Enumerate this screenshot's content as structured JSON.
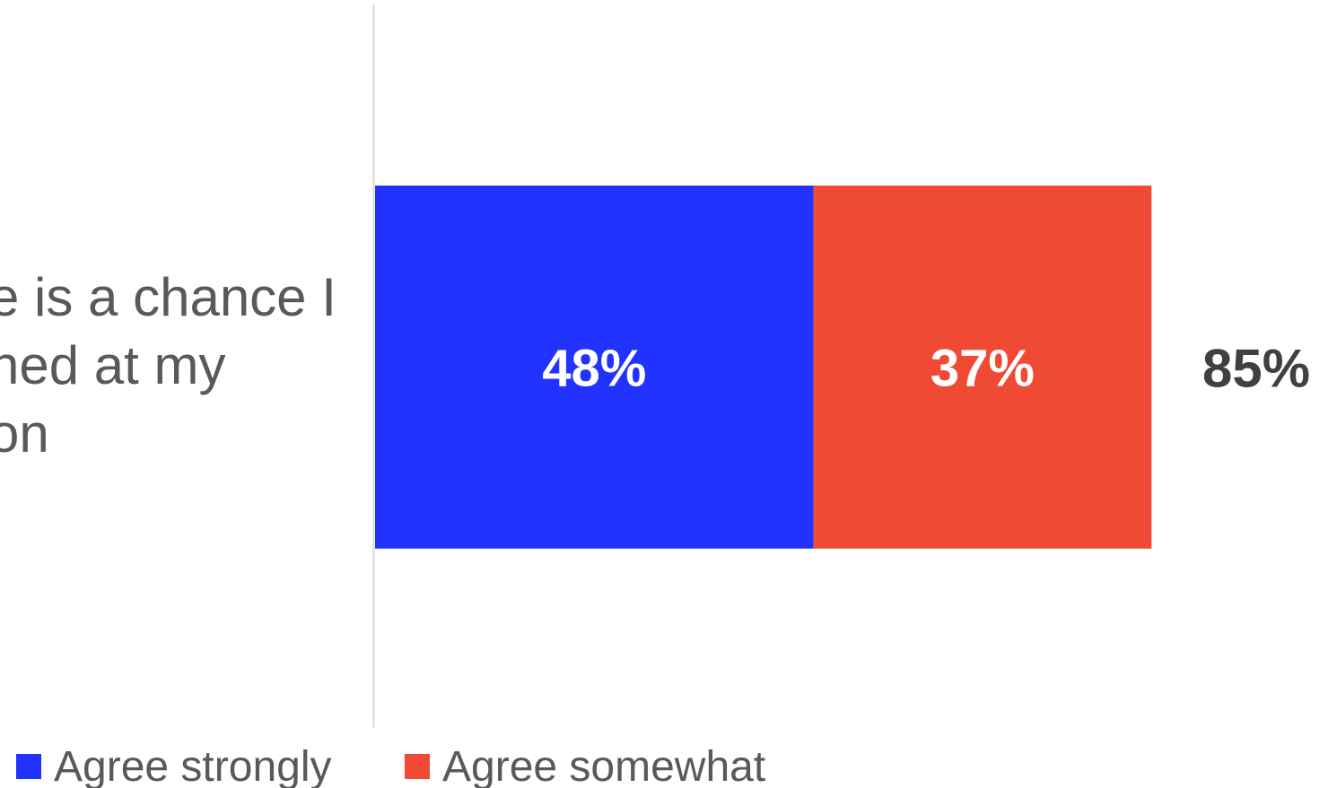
{
  "chart_data": {
    "type": "bar",
    "orientation": "horizontal",
    "stacked": true,
    "categories": [
      "e is a chance I\nned at my\non"
    ],
    "series": [
      {
        "name": "Agree strongly",
        "values": [
          48
        ],
        "value_labels": [
          "48%"
        ],
        "color": "#2233ff"
      },
      {
        "name": "Agree somewhat",
        "values": [
          37
        ],
        "value_labels": [
          "37%"
        ],
        "color": "#f04a35"
      }
    ],
    "totals": [
      85
    ],
    "total_labels": [
      "85%"
    ],
    "xlim": [
      0,
      100
    ],
    "legend_position": "bottom-left",
    "grid": false,
    "colors": {
      "axis_line": "#d9d9d9",
      "category_text": "#595959",
      "total_text": "#404040",
      "bar_label_text": "#ffffff",
      "legend_text": "#595959"
    }
  }
}
